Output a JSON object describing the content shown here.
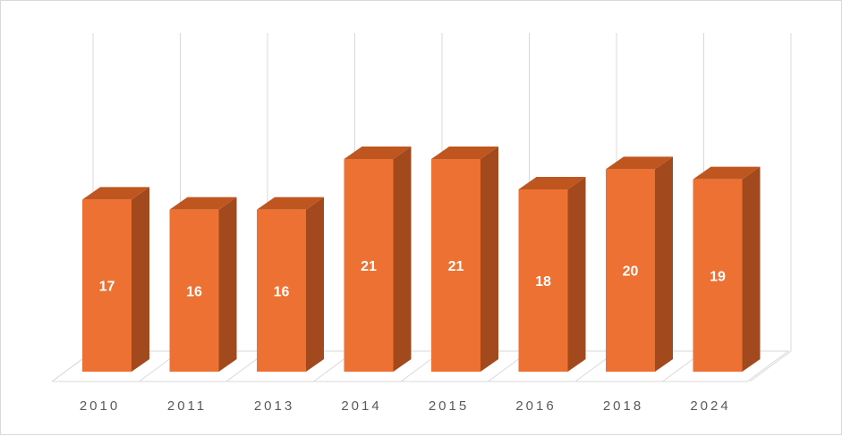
{
  "chart_data": {
    "type": "bar",
    "style": "3d-column",
    "categories": [
      "2010",
      "2011",
      "2013",
      "2014",
      "2015",
      "2016",
      "2018",
      "2024"
    ],
    "values": [
      17,
      16,
      16,
      21,
      21,
      18,
      20,
      19
    ],
    "data_labels": [
      "17",
      "16",
      "16",
      "21",
      "21",
      "18",
      "20",
      "19"
    ],
    "title": "",
    "xlabel": "",
    "ylabel": "",
    "ylim": [
      0,
      21
    ],
    "grid": "vertical",
    "legend": "none",
    "colors": {
      "bar_front": "#ed7132",
      "bar_side": "#a24a1d",
      "bar_top": "#c0561f",
      "grid": "#d9d9d9",
      "tick_text": "#595959",
      "label_text": "#ffffff"
    }
  }
}
